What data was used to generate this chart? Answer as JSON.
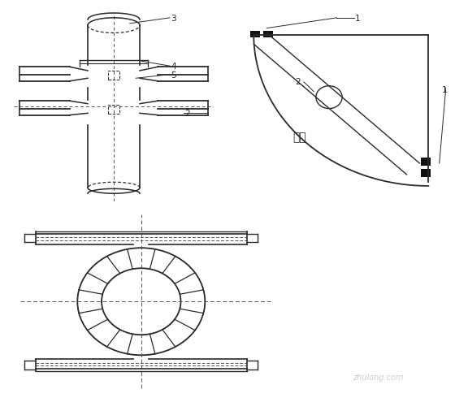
{
  "bg": "#ffffff",
  "lc": "#2a2a2a",
  "dc": "#555555",
  "fw": 5.6,
  "fh": 4.95,
  "dpi": 100
}
